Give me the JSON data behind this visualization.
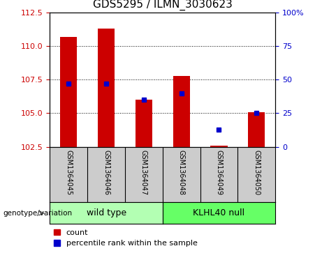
{
  "title": "GDS5295 / ILMN_3030623",
  "categories": [
    "GSM1364045",
    "GSM1364046",
    "GSM1364047",
    "GSM1364048",
    "GSM1364049",
    "GSM1364050"
  ],
  "group_labels": [
    "wild type",
    "KLHL40 null"
  ],
  "group_colors": [
    "#b3ffb3",
    "#66ff66"
  ],
  "bar_values": [
    110.7,
    111.3,
    106.0,
    107.8,
    102.6,
    105.1
  ],
  "bar_base": 102.5,
  "percentile_values": [
    47,
    47,
    35,
    40,
    13,
    25
  ],
  "ylim_left": [
    102.5,
    112.5
  ],
  "ylim_right": [
    0,
    100
  ],
  "yticks_left": [
    102.5,
    105.0,
    107.5,
    110.0,
    112.5
  ],
  "yticks_right": [
    0,
    25,
    50,
    75,
    100
  ],
  "bar_color": "#cc0000",
  "dot_color": "#0000cc",
  "bg_color": "#cccccc",
  "plot_bg": "#ffffff",
  "label_left_color": "#cc0000",
  "label_right_color": "#0000cc",
  "genotype_label": "genotype/variation",
  "legend_count": "count",
  "legend_pct": "percentile rank within the sample",
  "title_fontsize": 11,
  "tick_fontsize": 8,
  "bar_width": 0.45
}
